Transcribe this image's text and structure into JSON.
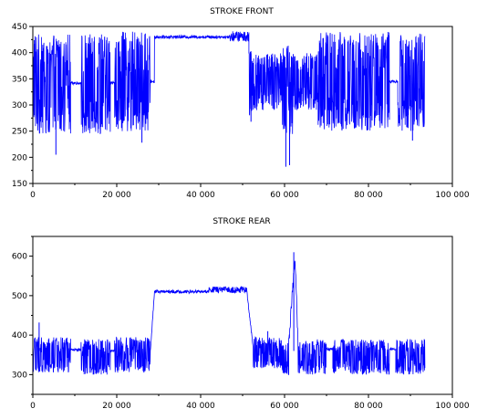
{
  "chart_data": [
    {
      "type": "line",
      "title": "STROKE FRONT",
      "xlabel": "",
      "ylabel": "",
      "xlim": [
        0,
        100000
      ],
      "ylim": [
        150,
        450
      ],
      "x_ticks": [
        0,
        20000,
        40000,
        60000,
        80000,
        100000
      ],
      "x_tick_labels": [
        "0",
        "20 000",
        "40 000",
        "60 000",
        "80 000",
        "100 000"
      ],
      "y_ticks": [
        150,
        200,
        250,
        300,
        350,
        400,
        450
      ],
      "y_tick_labels": [
        "150",
        "200",
        "250",
        "300",
        "350",
        "400",
        "450"
      ],
      "grid": false,
      "series": [
        {
          "color": "#0000ff",
          "segments": [
            {
              "x0": 0,
              "x1": 9000,
              "kind": "noisy",
              "base": 340,
              "amp": 95
            },
            {
              "x0": 9000,
              "x1": 11500,
              "kind": "flat",
              "base": 342,
              "amp": 3
            },
            {
              "x0": 11500,
              "x1": 18500,
              "kind": "noisy",
              "base": 340,
              "amp": 95
            },
            {
              "x0": 18500,
              "x1": 19500,
              "kind": "flat",
              "base": 342,
              "amp": 3
            },
            {
              "x0": 19500,
              "x1": 28000,
              "kind": "noisy",
              "base": 345,
              "amp": 95
            },
            {
              "x0": 28000,
              "x1": 29000,
              "kind": "flat",
              "base": 345,
              "amp": 3
            },
            {
              "x0": 29000,
              "x1": 47000,
              "kind": "flat",
              "base": 430,
              "amp": 3
            },
            {
              "x0": 47000,
              "x1": 51500,
              "kind": "flat",
              "base": 431,
              "amp": 10
            },
            {
              "x0": 51500,
              "x1": 52500,
              "kind": "noisy",
              "base": 345,
              "amp": 75
            },
            {
              "x0": 52500,
              "x1": 59500,
              "kind": "noisy",
              "base": 345,
              "amp": 55
            },
            {
              "x0": 59500,
              "x1": 62000,
              "kind": "noisy",
              "base": 330,
              "amp": 90
            },
            {
              "x0": 62000,
              "x1": 68000,
              "kind": "noisy",
              "base": 345,
              "amp": 55
            },
            {
              "x0": 68000,
              "x1": 70000,
              "kind": "noisy",
              "base": 345,
              "amp": 95
            },
            {
              "x0": 70000,
              "x1": 85000,
              "kind": "noisy",
              "base": 345,
              "amp": 95
            },
            {
              "x0": 85000,
              "x1": 87000,
              "kind": "flat",
              "base": 345,
              "amp": 3
            },
            {
              "x0": 87000,
              "x1": 93500,
              "kind": "noisy",
              "base": 345,
              "amp": 95
            }
          ],
          "spikes": [
            {
              "x": 60300,
              "y": 182
            },
            {
              "x": 61200,
              "y": 185
            },
            {
              "x": 52000,
              "y": 268
            },
            {
              "x": 5500,
              "y": 205
            },
            {
              "x": 90500,
              "y": 232
            },
            {
              "x": 26000,
              "y": 228
            }
          ]
        }
      ]
    },
    {
      "type": "line",
      "title": "STROKE REAR",
      "xlabel": "",
      "ylabel": "",
      "xlim": [
        0,
        100000
      ],
      "ylim": [
        250,
        650
      ],
      "x_ticks": [
        0,
        20000,
        40000,
        60000,
        80000,
        100000
      ],
      "x_tick_labels": [
        "0",
        "20 000",
        "40 000",
        "60 000",
        "80 000",
        "100 000"
      ],
      "y_ticks": [
        300,
        400,
        500,
        600
      ],
      "y_tick_labels": [
        "300",
        "400",
        "500",
        "600"
      ],
      "grid": false,
      "series": [
        {
          "color": "#0000ff",
          "segments": [
            {
              "x0": 0,
              "x1": 9000,
              "kind": "noisy",
              "base": 350,
              "amp": 45
            },
            {
              "x0": 9000,
              "x1": 11500,
              "kind": "flat",
              "base": 363,
              "amp": 3
            },
            {
              "x0": 11500,
              "x1": 18500,
              "kind": "noisy",
              "base": 345,
              "amp": 45
            },
            {
              "x0": 18500,
              "x1": 19500,
              "kind": "flat",
              "base": 360,
              "amp": 3
            },
            {
              "x0": 19500,
              "x1": 28000,
              "kind": "noisy",
              "base": 350,
              "amp": 45
            },
            {
              "x0": 28000,
              "x1": 29000,
              "kind": "ramp",
              "base": 360,
              "end": 510,
              "amp": 5
            },
            {
              "x0": 29000,
              "x1": 42000,
              "kind": "flat",
              "base": 510,
              "amp": 4
            },
            {
              "x0": 42000,
              "x1": 51000,
              "kind": "flat",
              "base": 515,
              "amp": 8
            },
            {
              "x0": 51000,
              "x1": 52500,
              "kind": "ramp",
              "base": 510,
              "end": 370,
              "amp": 5
            },
            {
              "x0": 52500,
              "x1": 59500,
              "kind": "noisy",
              "base": 355,
              "amp": 40
            },
            {
              "x0": 59500,
              "x1": 61000,
              "kind": "noisy",
              "base": 340,
              "amp": 40
            },
            {
              "x0": 61000,
              "x1": 62500,
              "kind": "ramp",
              "base": 380,
              "end": 600,
              "amp": 15
            },
            {
              "x0": 62500,
              "x1": 63200,
              "kind": "ramp",
              "base": 600,
              "end": 380,
              "amp": 15
            },
            {
              "x0": 63200,
              "x1": 70000,
              "kind": "noisy",
              "base": 345,
              "amp": 45
            },
            {
              "x0": 70000,
              "x1": 71500,
              "kind": "flat",
              "base": 365,
              "amp": 3
            },
            {
              "x0": 71500,
              "x1": 85000,
              "kind": "noisy",
              "base": 345,
              "amp": 45
            },
            {
              "x0": 85000,
              "x1": 86500,
              "kind": "flat",
              "base": 365,
              "amp": 3
            },
            {
              "x0": 86500,
              "x1": 93500,
              "kind": "noisy",
              "base": 345,
              "amp": 45
            }
          ],
          "spikes": [
            {
              "x": 62200,
              "y": 610
            },
            {
              "x": 1500,
              "y": 432
            },
            {
              "x": 56000,
              "y": 410
            }
          ]
        }
      ]
    }
  ]
}
